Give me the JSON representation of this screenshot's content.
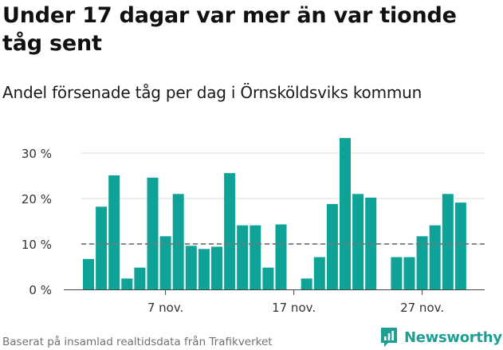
{
  "title": "Under 17 dagar var mer än var tionde tåg sent",
  "subtitle": "Andel försenade tåg per dag i Örnsköldsviks kommun",
  "source": "Baserat på insamlad realtidsdata från Trafikverket",
  "brand": "Newsworthy",
  "colors": {
    "bar": "#0fa398",
    "reference_line": "#777777",
    "grid": "#dddddd",
    "brand": "#1f9f93"
  },
  "chart_data": {
    "type": "bar",
    "x": [
      1,
      2,
      3,
      4,
      5,
      6,
      7,
      8,
      9,
      10,
      11,
      12,
      13,
      14,
      15,
      16,
      17,
      18,
      19,
      20,
      21,
      22,
      23,
      24,
      25,
      26,
      27,
      28,
      29,
      30
    ],
    "values": [
      6.7,
      18.2,
      25.1,
      2.4,
      4.8,
      24.6,
      11.7,
      21.0,
      9.6,
      8.9,
      9.4,
      25.6,
      14.1,
      14.1,
      4.8,
      14.3,
      null,
      2.4,
      7.1,
      18.8,
      33.3,
      21.0,
      20.2,
      null,
      7.1,
      7.1,
      11.7,
      14.1,
      21.0,
      19.1
    ],
    "reference_line": 10,
    "ylim": [
      0,
      35
    ],
    "yticks": [
      0,
      10,
      20,
      30
    ],
    "ytick_labels": [
      "0 %",
      "10 %",
      "20 %",
      "30 %"
    ],
    "xticks": [
      7,
      17,
      27
    ],
    "xtick_labels": [
      "7 nov.",
      "17 nov.",
      "27 nov."
    ],
    "grid": true,
    "title": "Under 17 dagar var mer än var tionde tåg sent",
    "subtitle": "Andel försenade tåg per dag i Örnsköldsviks kommun",
    "xlabel": "",
    "ylabel": ""
  }
}
